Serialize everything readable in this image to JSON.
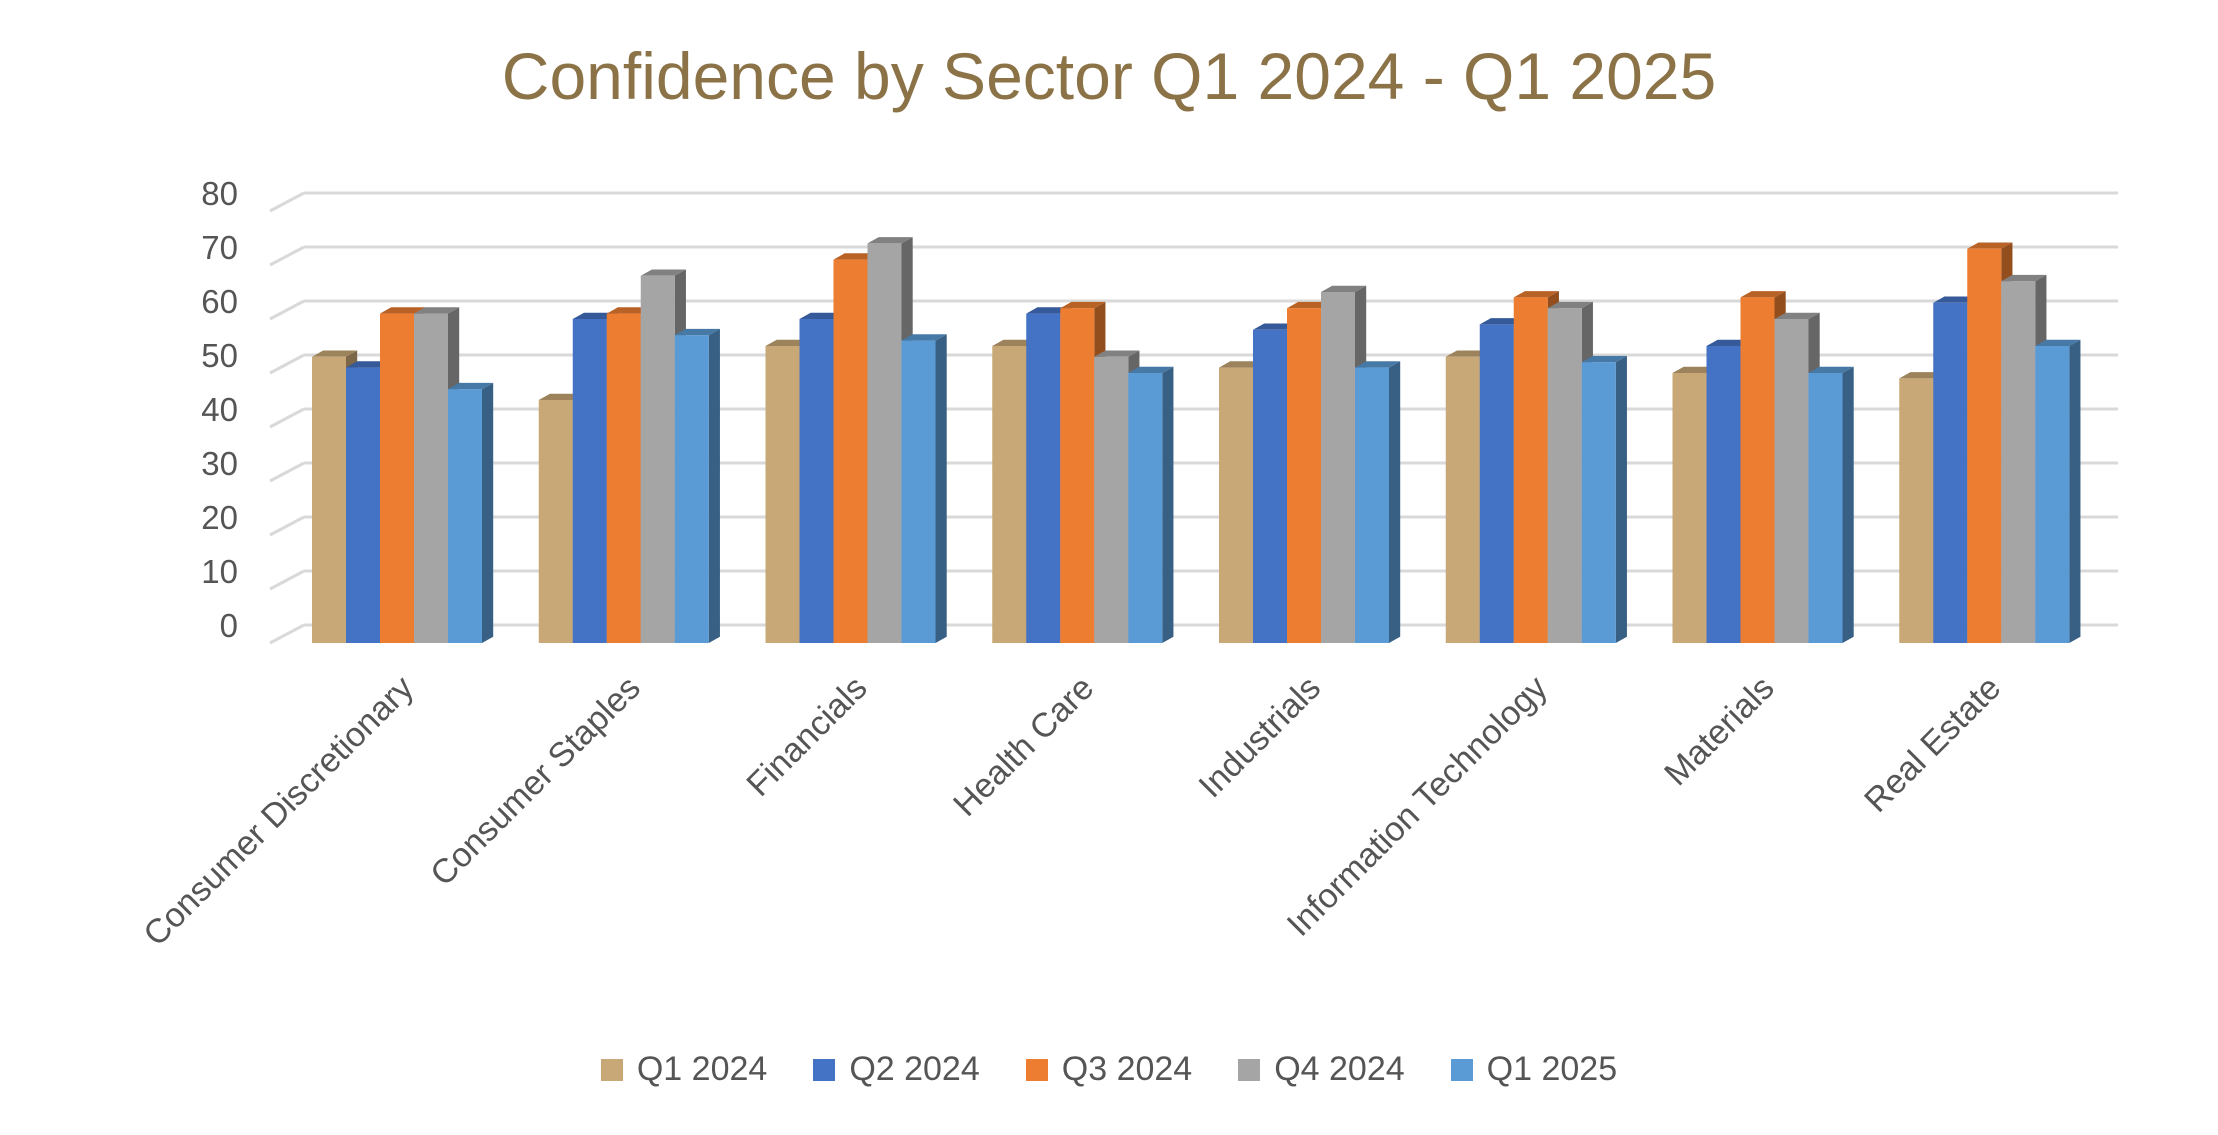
{
  "chart_data": {
    "type": "bar",
    "title": "Confidence by Sector Q1 2024 - Q1 2025",
    "xlabel": "",
    "ylabel": "",
    "ylim": [
      0,
      80
    ],
    "yticks": [
      "0",
      "10",
      "20",
      "30",
      "40",
      "50",
      "60",
      "70",
      "80"
    ],
    "grid": true,
    "legend_position": "bottom",
    "categories": [
      "Consumer Discretionary",
      "Consumer Staples",
      "Financials",
      "Health Care",
      "Industrials",
      "Information Technology",
      "Materials",
      "Real Estate"
    ],
    "series": [
      {
        "name": "Q1 2024",
        "color": "#c8a876",
        "values": [
          53,
          45,
          55,
          55,
          51,
          53,
          50,
          49
        ]
      },
      {
        "name": "Q2 2024",
        "color": "#4472c4",
        "values": [
          51,
          60,
          60,
          61,
          58,
          59,
          55,
          63
        ]
      },
      {
        "name": "Q3 2024",
        "color": "#ed7d31",
        "values": [
          61,
          61,
          71,
          62,
          62,
          64,
          64,
          73
        ]
      },
      {
        "name": "Q4 2024",
        "color": "#a5a5a5",
        "values": [
          61,
          68,
          74,
          53,
          65,
          62,
          60,
          67
        ]
      },
      {
        "name": "Q1 2025",
        "color": "#5b9bd5",
        "values": [
          47,
          57,
          56,
          50,
          51,
          52,
          50,
          55
        ]
      }
    ]
  }
}
